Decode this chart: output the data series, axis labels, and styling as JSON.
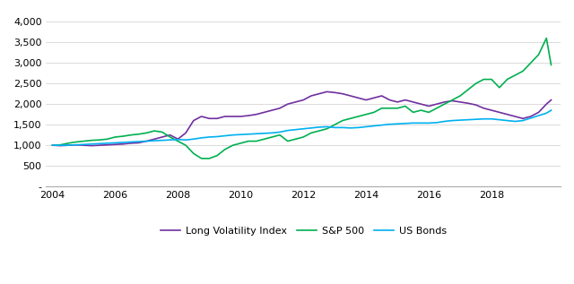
{
  "title": "",
  "xlabel": "",
  "ylabel": "",
  "ylim": [
    0,
    4200
  ],
  "yticks": [
    0,
    500,
    1000,
    1500,
    2000,
    2500,
    3000,
    3500,
    4000
  ],
  "ytick_labels": [
    "-",
    "500",
    "1,000",
    "1,500",
    "2,000",
    "2,500",
    "3,000",
    "3,500",
    "4,000"
  ],
  "xlim": [
    2003.8,
    2020.2
  ],
  "xticks": [
    2004,
    2006,
    2008,
    2010,
    2012,
    2014,
    2016,
    2018
  ],
  "background_color": "#ffffff",
  "grid_color": "#cccccc",
  "legend_labels": [
    "Long Volatility Index",
    "S&P 500",
    "US Bonds"
  ],
  "legend_colors": [
    "#7030a0",
    "#00b050",
    "#00b0f0"
  ],
  "line_width": 1.2,
  "long_vol": {
    "years": [
      2004,
      2004.25,
      2004.5,
      2004.75,
      2005,
      2005.25,
      2005.5,
      2005.75,
      2006,
      2006.25,
      2006.5,
      2006.75,
      2007,
      2007.25,
      2007.5,
      2007.75,
      2008,
      2008.25,
      2008.5,
      2008.75,
      2009,
      2009.25,
      2009.5,
      2009.75,
      2010,
      2010.25,
      2010.5,
      2010.75,
      2011,
      2011.25,
      2011.5,
      2011.75,
      2012,
      2012.25,
      2012.5,
      2012.75,
      2013,
      2013.25,
      2013.5,
      2013.75,
      2014,
      2014.25,
      2014.5,
      2014.75,
      2015,
      2015.25,
      2015.5,
      2015.75,
      2016,
      2016.25,
      2016.5,
      2016.75,
      2017,
      2017.25,
      2017.5,
      2017.75,
      2018,
      2018.25,
      2018.5,
      2018.75,
      2019,
      2019.25,
      2019.5,
      2019.75,
      2019.9
    ],
    "values": [
      1000,
      990,
      1000,
      1010,
      1000,
      990,
      1000,
      1010,
      1020,
      1030,
      1050,
      1060,
      1100,
      1150,
      1200,
      1250,
      1150,
      1300,
      1600,
      1700,
      1650,
      1650,
      1700,
      1700,
      1700,
      1720,
      1750,
      1800,
      1850,
      1900,
      2000,
      2050,
      2100,
      2200,
      2250,
      2300,
      2280,
      2250,
      2200,
      2150,
      2100,
      2150,
      2200,
      2100,
      2050,
      2100,
      2050,
      2000,
      1950,
      2000,
      2050,
      2080,
      2050,
      2020,
      1980,
      1900,
      1850,
      1800,
      1750,
      1700,
      1650,
      1700,
      1800,
      2000,
      2100
    ]
  },
  "sp500": {
    "years": [
      2004,
      2004.25,
      2004.5,
      2004.75,
      2005,
      2005.25,
      2005.5,
      2005.75,
      2006,
      2006.25,
      2006.5,
      2006.75,
      2007,
      2007.25,
      2007.5,
      2007.75,
      2008,
      2008.25,
      2008.5,
      2008.75,
      2009,
      2009.25,
      2009.5,
      2009.75,
      2010,
      2010.25,
      2010.5,
      2010.75,
      2011,
      2011.25,
      2011.5,
      2011.75,
      2012,
      2012.25,
      2012.5,
      2012.75,
      2013,
      2013.25,
      2013.5,
      2013.75,
      2014,
      2014.25,
      2014.5,
      2014.75,
      2015,
      2015.25,
      2015.5,
      2015.75,
      2016,
      2016.25,
      2016.5,
      2016.75,
      2017,
      2017.25,
      2017.5,
      2017.75,
      2018,
      2018.25,
      2018.5,
      2018.75,
      2019,
      2019.25,
      2019.5,
      2019.75,
      2019.9
    ],
    "values": [
      1000,
      1010,
      1050,
      1080,
      1100,
      1120,
      1130,
      1150,
      1200,
      1220,
      1250,
      1270,
      1300,
      1350,
      1320,
      1200,
      1100,
      1000,
      800,
      680,
      680,
      750,
      900,
      1000,
      1050,
      1100,
      1100,
      1150,
      1200,
      1250,
      1100,
      1150,
      1200,
      1300,
      1350,
      1400,
      1500,
      1600,
      1650,
      1700,
      1750,
      1800,
      1900,
      1900,
      1900,
      1950,
      1800,
      1850,
      1800,
      1900,
      2000,
      2100,
      2200,
      2350,
      2500,
      2600,
      2600,
      2400,
      2600,
      2700,
      2800,
      3000,
      3200,
      3600,
      2950
    ]
  },
  "us_bonds": {
    "years": [
      2004,
      2004.25,
      2004.5,
      2004.75,
      2005,
      2005.25,
      2005.5,
      2005.75,
      2006,
      2006.25,
      2006.5,
      2006.75,
      2007,
      2007.25,
      2007.5,
      2007.75,
      2008,
      2008.25,
      2008.5,
      2008.75,
      2009,
      2009.25,
      2009.5,
      2009.75,
      2010,
      2010.25,
      2010.5,
      2010.75,
      2011,
      2011.25,
      2011.5,
      2011.75,
      2012,
      2012.25,
      2012.5,
      2012.75,
      2013,
      2013.25,
      2013.5,
      2013.75,
      2014,
      2014.25,
      2014.5,
      2014.75,
      2015,
      2015.25,
      2015.5,
      2015.75,
      2016,
      2016.25,
      2016.5,
      2016.75,
      2017,
      2017.25,
      2017.5,
      2017.75,
      2018,
      2018.25,
      2018.5,
      2018.75,
      2019,
      2019.25,
      2019.5,
      2019.75,
      2019.9
    ],
    "values": [
      1000,
      1000,
      1000,
      1010,
      1020,
      1030,
      1040,
      1050,
      1060,
      1070,
      1080,
      1090,
      1100,
      1110,
      1120,
      1130,
      1140,
      1130,
      1150,
      1180,
      1200,
      1210,
      1230,
      1250,
      1260,
      1270,
      1280,
      1290,
      1300,
      1320,
      1360,
      1380,
      1400,
      1420,
      1440,
      1450,
      1430,
      1430,
      1420,
      1430,
      1450,
      1470,
      1490,
      1510,
      1520,
      1530,
      1540,
      1540,
      1540,
      1550,
      1580,
      1600,
      1610,
      1620,
      1630,
      1640,
      1640,
      1620,
      1600,
      1580,
      1600,
      1660,
      1720,
      1780,
      1850
    ]
  }
}
